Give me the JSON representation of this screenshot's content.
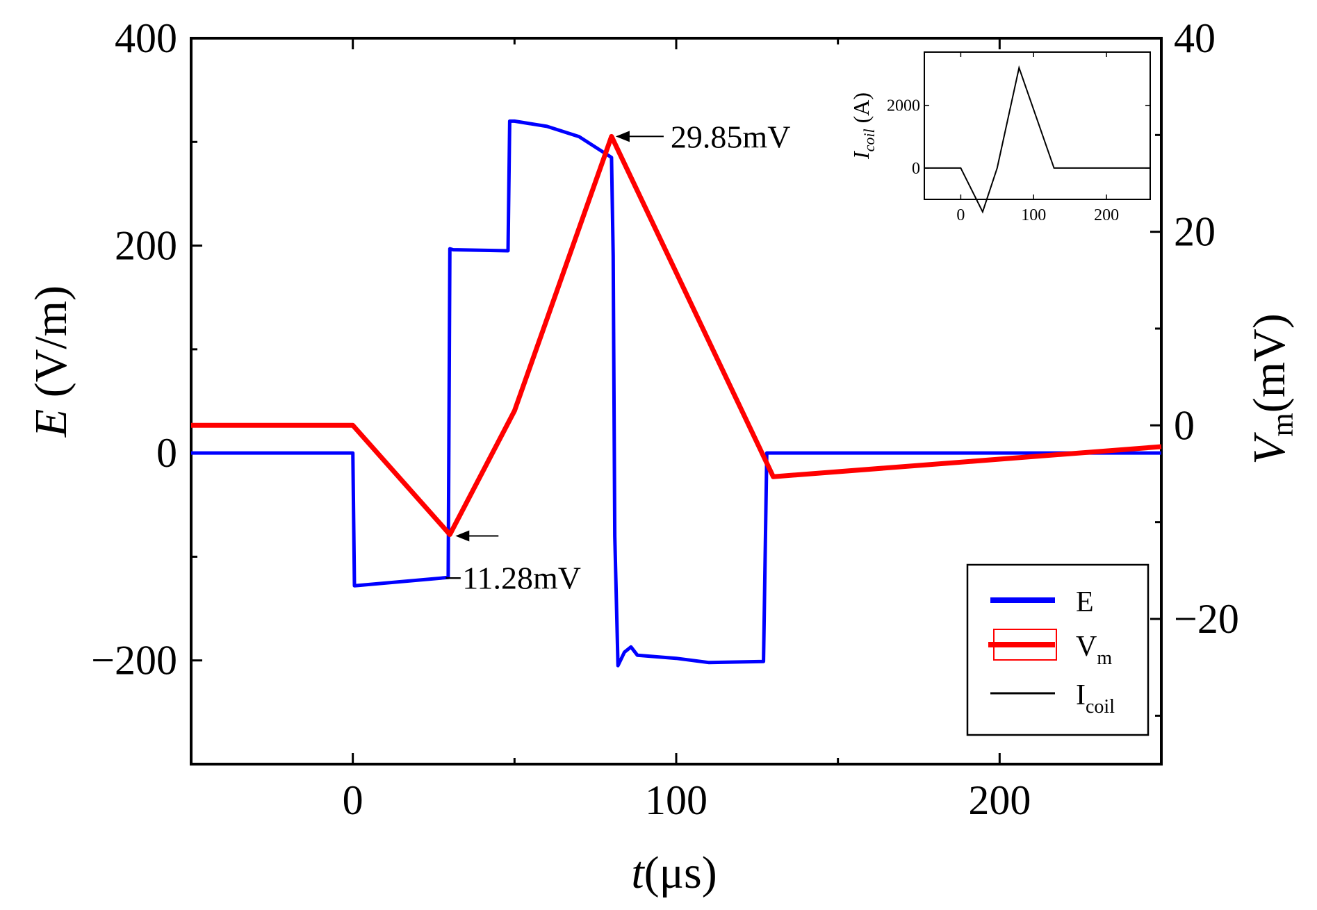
{
  "chart_data": {
    "type": "line",
    "x": {
      "label_var": "t",
      "label_unit": "(μs)",
      "range": [
        -50,
        250
      ],
      "ticks": [
        0,
        100,
        200
      ],
      "tick_labels": [
        "0",
        "100",
        "200"
      ]
    },
    "y_left": {
      "label_var": "E",
      "label_unit": " (V/m)",
      "range": [
        -300,
        400
      ],
      "ticks": [
        -200,
        0,
        200,
        400
      ],
      "tick_labels": [
        "−200",
        "0",
        "200",
        "400"
      ]
    },
    "y_right": {
      "label_var": "V",
      "label_sub": "m",
      "label_unit": "(mV)",
      "range": [
        -35,
        40
      ],
      "ticks": [
        -20,
        0,
        20,
        40
      ],
      "tick_labels": [
        "−20",
        "0",
        "20",
        "40"
      ]
    },
    "series": [
      {
        "name": "E",
        "axis": "left",
        "color": "#0000ff",
        "points": [
          [
            -50,
            0
          ],
          [
            0,
            0
          ],
          [
            0.5,
            -128
          ],
          [
            29.5,
            -120
          ],
          [
            30,
            197
          ],
          [
            31,
            196
          ],
          [
            48,
            195
          ],
          [
            48.5,
            320
          ],
          [
            50,
            320
          ],
          [
            60,
            315
          ],
          [
            70,
            305
          ],
          [
            80,
            285
          ],
          [
            80.5,
            190
          ],
          [
            81,
            -80
          ],
          [
            82,
            -205
          ],
          [
            84,
            -192
          ],
          [
            86,
            -187
          ],
          [
            88,
            -195
          ],
          [
            100,
            -198
          ],
          [
            110,
            -202
          ],
          [
            127,
            -201
          ],
          [
            128,
            0
          ],
          [
            250,
            0
          ]
        ]
      },
      {
        "name": "V",
        "name_sub": "m",
        "axis": "right",
        "color": "#ff0000",
        "points": [
          [
            -50,
            0
          ],
          [
            0,
            0
          ],
          [
            30,
            -11.28
          ],
          [
            50,
            1.5
          ],
          [
            80,
            29.85
          ],
          [
            130,
            -5.3
          ],
          [
            250,
            -2.2
          ]
        ]
      },
      {
        "name": "I",
        "name_sub": "coil",
        "axis": "inset",
        "color": "#000000",
        "points": []
      }
    ],
    "annotations": [
      {
        "text": "29.85mV",
        "x": 80,
        "value": 29.85,
        "axis": "right"
      },
      {
        "text": "−11.28mV",
        "x": 30,
        "value": -11.28,
        "axis": "right"
      }
    ],
    "legend": {
      "position": "bottom-right"
    },
    "inset": {
      "position": "top-right",
      "xlabel": "",
      "ylabel_var": "I",
      "ylabel_sub": "coil",
      "ylabel_unit": " (A)",
      "x_range": [
        -50,
        260
      ],
      "y_range": [
        -1000,
        3700
      ],
      "x_ticks": [
        0,
        100,
        200
      ],
      "x_tick_labels": [
        "0",
        "100",
        "200"
      ],
      "y_ticks": [
        0,
        2000
      ],
      "y_tick_labels": [
        "0",
        "2000"
      ],
      "points": [
        [
          -50,
          0
        ],
        [
          0,
          0
        ],
        [
          30,
          -1400
        ],
        [
          50,
          0
        ],
        [
          80,
          3200
        ],
        [
          128,
          0
        ],
        [
          260,
          0
        ]
      ]
    }
  }
}
